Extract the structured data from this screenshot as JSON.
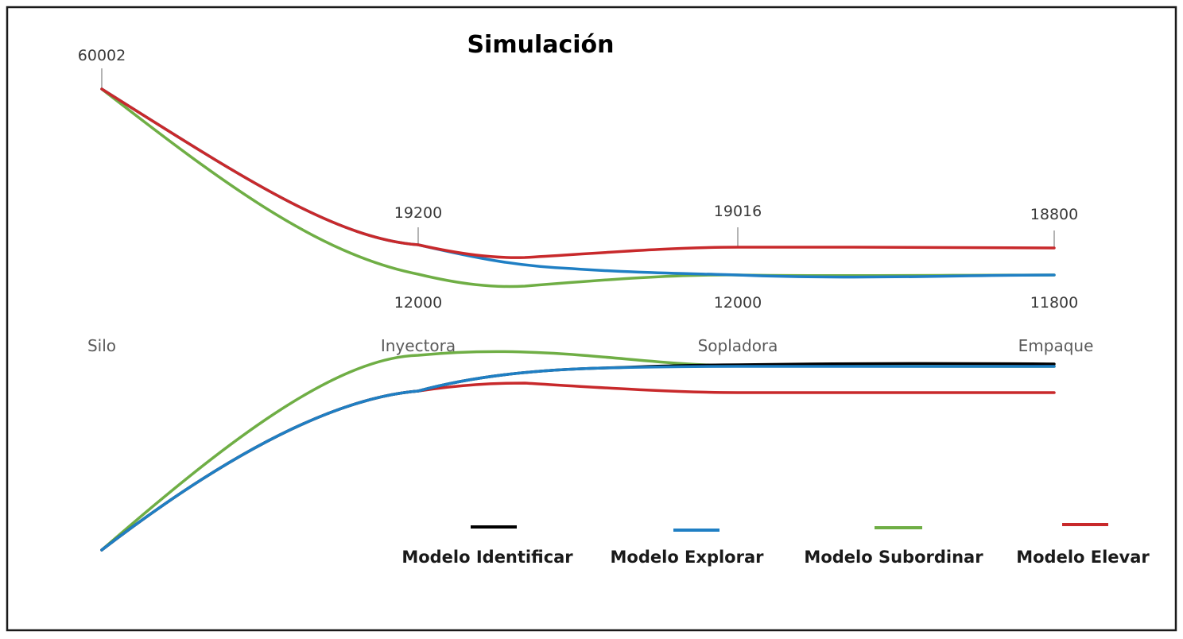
{
  "chart_data": {
    "type": "line",
    "title": "Simulación",
    "stages": [
      "Silo",
      "Inyectora",
      "Sopladora",
      "Empaque"
    ],
    "upper_labels": [
      "60002",
      "19200",
      "19016",
      "18800"
    ],
    "lower_labels": [
      "12000",
      "12000",
      "11800"
    ],
    "series": [
      {
        "name": "Modelo Identificar",
        "color": "#000000"
      },
      {
        "name": "Modelo Explorar",
        "color": "#1f7fc4"
      },
      {
        "name": "Modelo Subordinar",
        "color": "#6fae45"
      },
      {
        "name": "Modelo Elevar",
        "color": "#c8292b"
      }
    ],
    "grid": false,
    "legend_placement": "bottom-right"
  }
}
